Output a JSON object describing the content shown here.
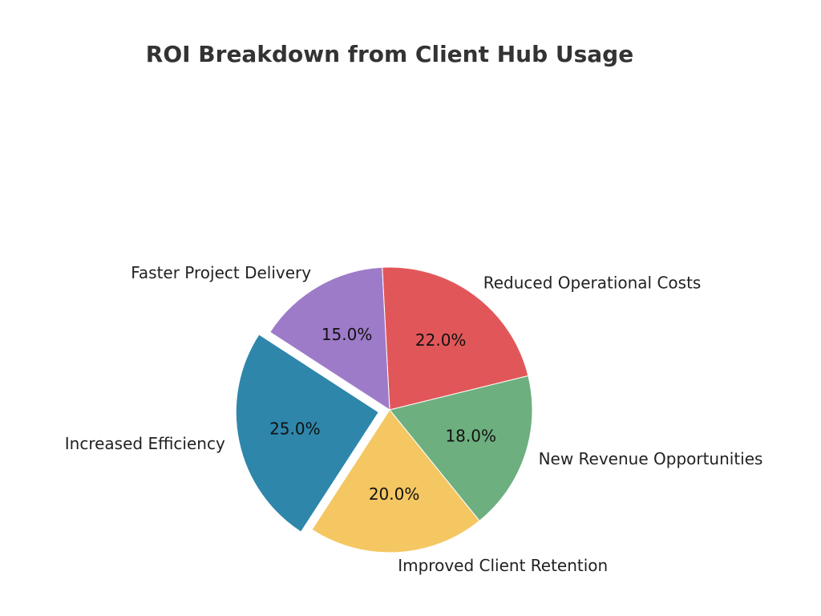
{
  "chart_data": {
    "type": "pie",
    "title": "ROI Breakdown from Client Hub Usage",
    "start_angle_deg": 93,
    "direction": "clockwise",
    "slices": [
      {
        "label": "Reduced Operational Costs",
        "value": 22.0,
        "pct_label": "22.0%",
        "color": "#e15759",
        "exploded": false
      },
      {
        "label": "New Revenue Opportunities",
        "value": 18.0,
        "pct_label": "18.0%",
        "color": "#6daf7f",
        "exploded": false
      },
      {
        "label": "Improved Client Retention",
        "value": 20.0,
        "pct_label": "20.0%",
        "color": "#f5c762",
        "exploded": false
      },
      {
        "label": "Increased Efficiency",
        "value": 25.0,
        "pct_label": "25.0%",
        "color": "#2e86ab",
        "exploded": true
      },
      {
        "label": "Faster Project Delivery",
        "value": 15.0,
        "pct_label": "15.0%",
        "color": "#9e7bc8",
        "exploded": false
      }
    ]
  }
}
